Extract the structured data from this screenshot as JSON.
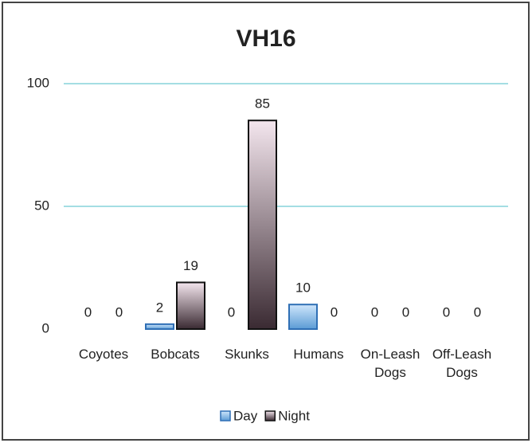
{
  "chart_data": {
    "type": "bar",
    "title": "VH16",
    "categories": [
      "Coyotes",
      "Bobcats",
      "Skunks",
      "Humans",
      "On-Leash Dogs",
      "Off-Leash Dogs"
    ],
    "series": [
      {
        "name": "Day",
        "color": "#5b9bd5",
        "values": [
          0,
          2,
          0,
          10,
          0,
          0
        ]
      },
      {
        "name": "Night",
        "color": "#3a2a32",
        "values": [
          0,
          19,
          85,
          0,
          0,
          0
        ]
      }
    ],
    "ylim": [
      0,
      100
    ],
    "yticks": [
      0,
      50,
      100
    ],
    "grid": true,
    "legend": "bottom"
  }
}
